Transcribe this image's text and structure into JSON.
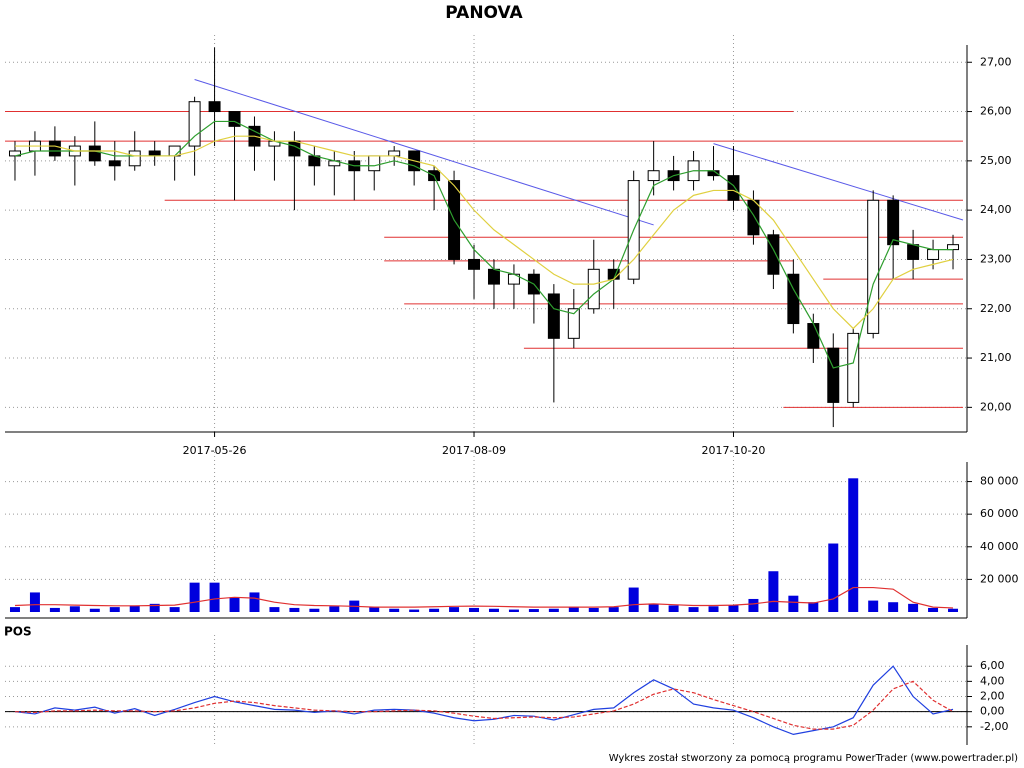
{
  "footer": "Wykres został stworzony za pomocą programu PowerTrader (www.powertrader.pl)",
  "chart_data": [
    {
      "type": "candlestick",
      "title": "PANOVA",
      "categories": [
        null,
        null,
        null,
        null,
        null,
        null,
        null,
        null,
        null,
        null,
        "2017-05-26",
        null,
        null,
        null,
        null,
        null,
        null,
        null,
        null,
        null,
        null,
        null,
        null,
        "2017-08-09",
        null,
        null,
        null,
        null,
        null,
        null,
        null,
        null,
        null,
        null,
        null,
        null,
        "2017-10-20",
        null,
        null,
        null,
        null,
        null,
        null,
        null,
        null,
        null,
        null,
        null
      ],
      "open": [
        25.1,
        25.2,
        25.4,
        25.1,
        25.3,
        25.0,
        24.9,
        25.2,
        25.1,
        25.3,
        26.2,
        26.0,
        25.7,
        25.3,
        25.4,
        25.1,
        24.9,
        25.0,
        24.8,
        25.1,
        25.2,
        24.8,
        24.6,
        23.0,
        22.8,
        22.5,
        22.7,
        22.3,
        21.4,
        22.0,
        22.8,
        22.6,
        24.6,
        24.8,
        24.6,
        24.8,
        24.7,
        24.2,
        23.5,
        22.7,
        21.7,
        21.2,
        20.1,
        21.5,
        24.2,
        23.3,
        23.0,
        23.2
      ],
      "high": [
        25.4,
        25.6,
        25.7,
        25.5,
        25.8,
        25.4,
        25.6,
        25.4,
        25.3,
        26.3,
        27.3,
        26.0,
        25.9,
        25.6,
        25.6,
        25.3,
        25.2,
        25.2,
        25.1,
        25.3,
        25.2,
        24.9,
        24.8,
        23.3,
        23.0,
        22.9,
        22.8,
        22.5,
        22.4,
        23.4,
        23.0,
        24.8,
        25.4,
        25.1,
        25.2,
        25.3,
        25.3,
        24.4,
        23.6,
        23.0,
        21.9,
        21.5,
        21.6,
        24.4,
        24.3,
        23.6,
        23.4,
        23.5
      ],
      "low": [
        24.6,
        24.7,
        25.0,
        24.5,
        24.9,
        24.6,
        24.8,
        24.9,
        24.6,
        24.7,
        25.3,
        24.2,
        24.8,
        24.6,
        24.0,
        24.5,
        24.3,
        24.2,
        24.4,
        24.9,
        24.5,
        24.0,
        22.9,
        22.2,
        22.0,
        22.0,
        21.7,
        20.1,
        21.2,
        21.9,
        22.0,
        22.5,
        24.3,
        24.4,
        24.4,
        24.6,
        24.0,
        23.3,
        22.4,
        21.5,
        20.9,
        19.6,
        20.0,
        21.4,
        22.6,
        22.6,
        22.8,
        22.8
      ],
      "close": [
        25.2,
        25.4,
        25.1,
        25.3,
        25.0,
        24.9,
        25.2,
        25.1,
        25.3,
        26.2,
        26.0,
        25.7,
        25.3,
        25.4,
        25.1,
        24.9,
        25.0,
        24.8,
        25.1,
        25.2,
        24.8,
        24.6,
        23.0,
        22.8,
        22.5,
        22.7,
        22.3,
        21.4,
        22.0,
        22.8,
        22.6,
        24.6,
        24.8,
        24.6,
        25.0,
        24.7,
        24.2,
        23.5,
        22.7,
        21.7,
        21.2,
        20.1,
        21.5,
        24.2,
        23.3,
        23.0,
        23.2,
        23.3
      ],
      "series": [
        {
          "color": "#2e9e2e",
          "values": [
            25.1,
            25.2,
            25.2,
            25.2,
            25.2,
            25.1,
            25.1,
            25.1,
            25.1,
            25.5,
            25.8,
            25.8,
            25.6,
            25.4,
            25.3,
            25.1,
            25.0,
            24.9,
            24.9,
            25.0,
            24.9,
            24.7,
            23.8,
            23.2,
            22.8,
            22.7,
            22.5,
            22.0,
            21.9,
            22.3,
            22.6,
            23.6,
            24.5,
            24.7,
            24.8,
            24.8,
            24.5,
            23.9,
            23.2,
            22.4,
            21.7,
            20.8,
            20.9,
            22.5,
            23.4,
            23.3,
            23.2,
            23.2
          ]
        },
        {
          "color": "#e0d040",
          "values": [
            25.3,
            25.3,
            25.3,
            25.2,
            25.2,
            25.2,
            25.1,
            25.1,
            25.1,
            25.2,
            25.4,
            25.5,
            25.5,
            25.4,
            25.4,
            25.3,
            25.2,
            25.1,
            25.1,
            25.1,
            25.0,
            24.9,
            24.5,
            24.0,
            23.6,
            23.3,
            23.0,
            22.7,
            22.5,
            22.5,
            22.6,
            23.0,
            23.5,
            24.0,
            24.3,
            24.4,
            24.4,
            24.2,
            23.8,
            23.2,
            22.6,
            22.0,
            21.6,
            22.0,
            22.6,
            22.8,
            22.9,
            23.0
          ]
        }
      ],
      "levels": {
        "color": "#e03030",
        "lines": [
          {
            "value": 26.0,
            "from": 0,
            "to": 39
          },
          {
            "value": 25.4,
            "from": 0,
            "to": 47
          },
          {
            "value": 24.2,
            "from": 8,
            "to": 47
          },
          {
            "value": 23.45,
            "from": 19,
            "to": 47
          },
          {
            "value": 22.97,
            "from": 19,
            "to": 39
          },
          {
            "value": 22.6,
            "from": 41,
            "to": 47
          },
          {
            "value": 22.1,
            "from": 20,
            "to": 47
          },
          {
            "value": 21.2,
            "from": 26,
            "to": 47
          },
          {
            "value": 20.0,
            "from": 39,
            "to": 47
          }
        ]
      },
      "trendlines": {
        "color": "#5a5ae8",
        "lines": [
          {
            "from": [
              9,
              26.65
            ],
            "to": [
              32,
              23.7
            ]
          },
          {
            "from": [
              35,
              25.35
            ],
            "to": [
              47,
              23.8
            ]
          }
        ]
      },
      "ylim": [
        19.5,
        27.35
      ],
      "yticks": [
        {
          "value": 20,
          "label": "20,00"
        },
        {
          "value": 21,
          "label": "21,00"
        },
        {
          "value": 22,
          "label": "22,00"
        },
        {
          "value": 23,
          "label": "23,00"
        },
        {
          "value": 24,
          "label": "24,00"
        },
        {
          "value": 25,
          "label": "25,00"
        },
        {
          "value": 26,
          "label": "26,00"
        },
        {
          "value": 27,
          "label": "27,00"
        }
      ],
      "grid": true
    },
    {
      "type": "bar",
      "series": [
        {
          "color": "#0000dd",
          "values": [
            3000,
            12000,
            2500,
            3500,
            2000,
            3000,
            4000,
            5000,
            3000,
            18000,
            18000,
            9000,
            12000,
            3000,
            2500,
            2000,
            3500,
            7000,
            3000,
            2000,
            1500,
            2000,
            3000,
            2500,
            2000,
            1500,
            1800,
            2000,
            3000,
            2500,
            3000,
            15000,
            5000,
            4000,
            3000,
            3500,
            4000,
            8000,
            25000,
            10000,
            6000,
            42000,
            82000,
            7000,
            6000,
            5000,
            2500,
            2000
          ]
        },
        {
          "type": "line",
          "color": "#e03030",
          "values": [
            4000,
            4500,
            4500,
            4200,
            4000,
            3800,
            3800,
            4000,
            4200,
            6000,
            8000,
            9000,
            8500,
            6000,
            4500,
            4000,
            3800,
            3500,
            3000,
            3000,
            3000,
            3200,
            3500,
            3600,
            3500,
            3200,
            3000,
            3000,
            3000,
            3000,
            3200,
            4500,
            5000,
            4500,
            4000,
            4000,
            4200,
            5000,
            6500,
            6000,
            5500,
            8000,
            15000,
            15000,
            14000,
            6000,
            3000,
            2500
          ]
        }
      ],
      "ylim": [
        0,
        92000
      ],
      "yticks": [
        {
          "value": 20000,
          "label": "20 000"
        },
        {
          "value": 40000,
          "label": "40 000"
        },
        {
          "value": 60000,
          "label": "60 000"
        },
        {
          "value": 80000,
          "label": "80 000"
        }
      ],
      "grid": true
    },
    {
      "type": "line",
      "title": "POS",
      "series": [
        {
          "color": "#2040e0",
          "values": [
            0,
            -0.3,
            0.5,
            0.2,
            0.6,
            -0.2,
            0.4,
            -0.5,
            0.3,
            1.2,
            2.0,
            1.3,
            0.8,
            0.3,
            0.2,
            -0.1,
            0.1,
            -0.3,
            0.2,
            0.3,
            0.2,
            -0.2,
            -0.8,
            -1.2,
            -1.0,
            -0.5,
            -0.6,
            -1.1,
            -0.4,
            0.3,
            0.5,
            2.5,
            4.2,
            3.0,
            1.0,
            0.5,
            0.2,
            -0.8,
            -2.0,
            -3.0,
            -2.5,
            -2.0,
            -0.8,
            3.5,
            6.0,
            2.0,
            -0.3,
            0.3
          ]
        },
        {
          "color": "#e03030",
          "dash": true,
          "values": [
            0,
            -0.1,
            0.1,
            0.1,
            0.2,
            0.1,
            0.1,
            0.0,
            0.1,
            0.5,
            1.1,
            1.4,
            1.2,
            0.8,
            0.5,
            0.2,
            0.1,
            0.0,
            0.0,
            0.1,
            0.2,
            0.1,
            -0.2,
            -0.6,
            -0.9,
            -0.8,
            -0.7,
            -0.8,
            -0.7,
            -0.3,
            0.1,
            1.0,
            2.3,
            3.0,
            2.5,
            1.6,
            0.8,
            0.0,
            -0.9,
            -1.8,
            -2.3,
            -2.3,
            -1.8,
            0.2,
            3.0,
            4.0,
            1.5,
            0.0
          ]
        }
      ],
      "ylim": [
        -4.4,
        8.8
      ],
      "yticks": [
        {
          "value": -2,
          "label": "-2,00"
        },
        {
          "value": 0,
          "label": "0,00"
        },
        {
          "value": 2,
          "label": "2,00"
        },
        {
          "value": 4,
          "label": "4,00"
        },
        {
          "value": 6,
          "label": "6,00"
        }
      ],
      "grid": true
    }
  ]
}
